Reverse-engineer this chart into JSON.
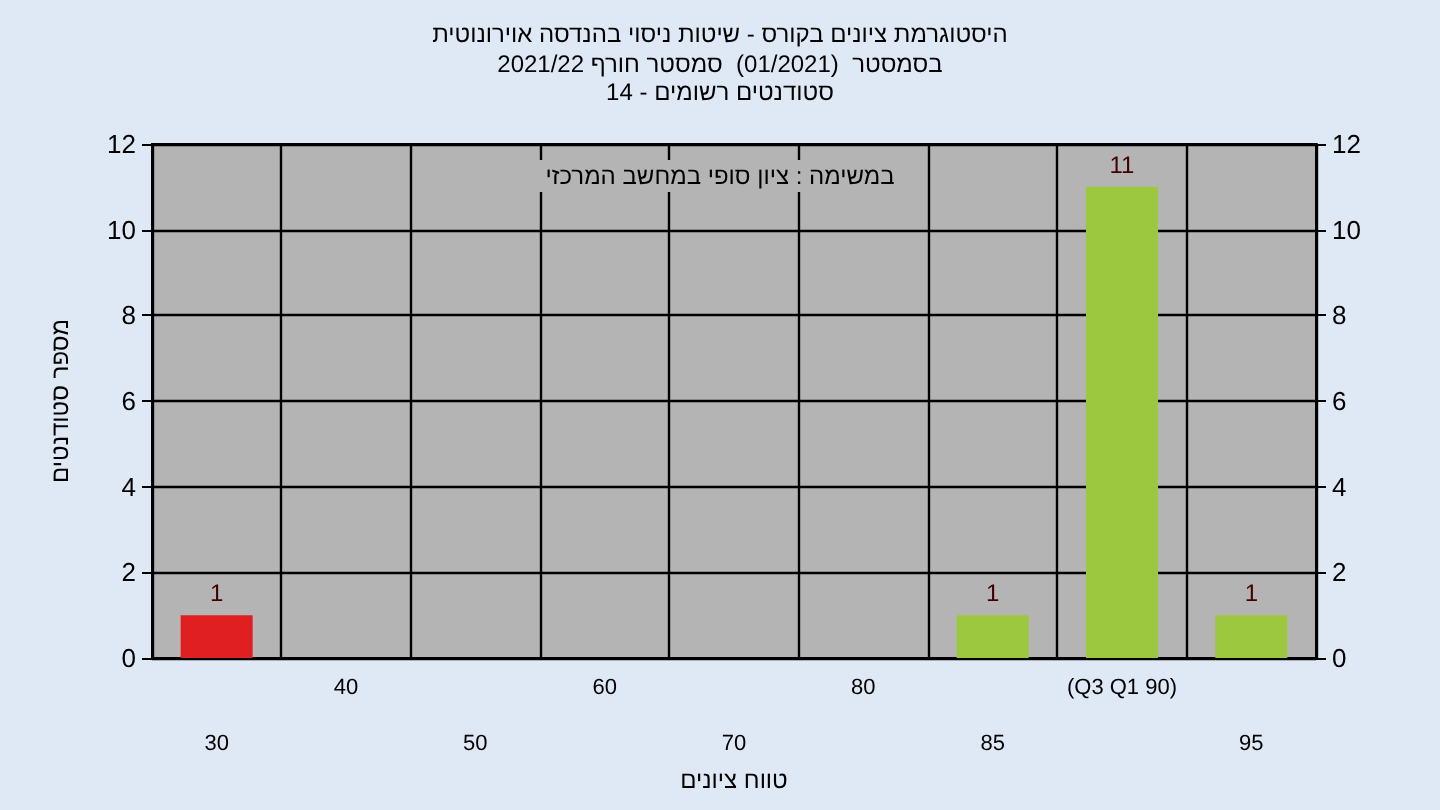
{
  "chart_data": {
    "type": "bar",
    "title": "היסטוגרמת ציונים בקורס - שיטות ניסוי בהנדסה אוירונוטית",
    "subtitle": "בסמסטר  (01/2021)  סמסטר חורף 2021/22\nסטודנטים רשומים - 14",
    "xlabel": "טווח ציונים",
    "ylabel": "מספר סטודנטים",
    "annotations": [
      "במשימה : ציון סופי במחשב המרכזי"
    ],
    "categories": [
      "30",
      "40",
      "50",
      "60",
      "70",
      "80",
      "85",
      "(Q3 Q1 90)",
      "95"
    ],
    "values": [
      1,
      0,
      0,
      0,
      0,
      0,
      1,
      11,
      1
    ],
    "colors": [
      "#e02020",
      "#9cc840",
      "#9cc840",
      "#9cc840",
      "#9cc840",
      "#9cc840",
      "#9cc840",
      "#9cc840",
      "#9cc840"
    ],
    "value_labels": [
      "1",
      null,
      null,
      null,
      null,
      null,
      "1",
      "11",
      "1"
    ],
    "ylim": [
      0,
      12
    ],
    "yticks": [
      0,
      2,
      4,
      6,
      8,
      10,
      12
    ],
    "y2lim": [
      0,
      12
    ],
    "y2ticks": [
      0,
      2,
      4,
      6,
      8,
      10,
      12
    ],
    "grid": true
  }
}
